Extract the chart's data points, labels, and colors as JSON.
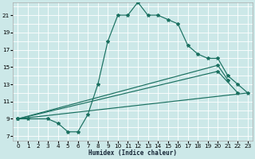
{
  "xlabel": "Humidex (Indice chaleur)",
  "bg_color": "#cce8e8",
  "grid_color": "#ffffff",
  "line_color": "#1a7060",
  "xlim": [
    -0.5,
    23.5
  ],
  "ylim": [
    6.5,
    22.5
  ],
  "xticks": [
    0,
    1,
    2,
    3,
    4,
    5,
    6,
    7,
    8,
    9,
    10,
    11,
    12,
    13,
    14,
    15,
    16,
    17,
    18,
    19,
    20,
    21,
    22,
    23
  ],
  "yticks": [
    7,
    9,
    11,
    13,
    15,
    17,
    19,
    21
  ],
  "curve_x": [
    0,
    1,
    3,
    4,
    5,
    6,
    7,
    8,
    9,
    10,
    11,
    12,
    13,
    14,
    15,
    16,
    17,
    18,
    19,
    20,
    21,
    22,
    23
  ],
  "curve_y": [
    9,
    9,
    9,
    8.5,
    7.5,
    7.5,
    9.5,
    13,
    18,
    21,
    21,
    22.5,
    21,
    21,
    20.5,
    20,
    17.5,
    16.5,
    16,
    16,
    14,
    13,
    12
  ],
  "line2_x": [
    0,
    20,
    21
  ],
  "line2_y": [
    9,
    15.2,
    13.5
  ],
  "line3_x": [
    0,
    20,
    22
  ],
  "line3_y": [
    9,
    14.5,
    12
  ],
  "line4_x": [
    0,
    23
  ],
  "line4_y": [
    9,
    12
  ]
}
